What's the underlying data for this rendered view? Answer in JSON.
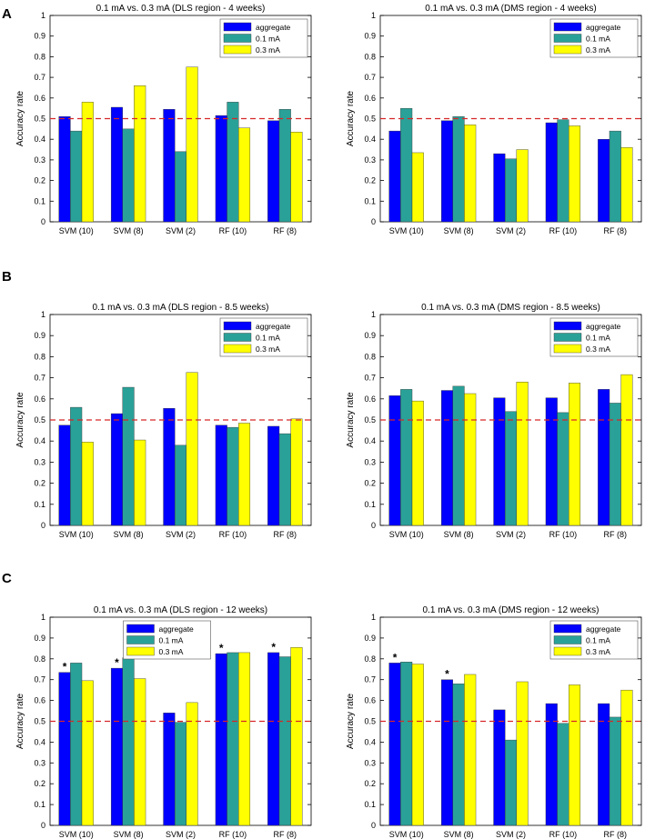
{
  "panels": [
    {
      "letter": "A"
    },
    {
      "letter": "B"
    },
    {
      "letter": "C"
    }
  ],
  "colors": {
    "aggregate": "#0000ff",
    "0.1 mA": "#2aa198",
    "0.3 mA": "#ffff00",
    "reference_line": "#d62728"
  },
  "chart_data": [
    {
      "type": "bar",
      "title": "0.1 mA vs. 0.3 mA (DLS region - 4 weeks)",
      "xlabel": "",
      "ylabel": "Accuracy rate",
      "ylim": [
        0,
        1
      ],
      "yticks": [
        "0",
        "0.1",
        "0.2",
        "0.3",
        "0.4",
        "0.5",
        "0.6",
        "0.7",
        "0.8",
        "0.9",
        "1"
      ],
      "categories": [
        "SVM (10)",
        "SVM (8)",
        "SVM (2)",
        "RF (10)",
        "RF (8)"
      ],
      "series": [
        {
          "name": "aggregate",
          "values": [
            0.51,
            0.555,
            0.545,
            0.515,
            0.49
          ]
        },
        {
          "name": "0.1 mA",
          "values": [
            0.44,
            0.45,
            0.34,
            0.58,
            0.545
          ]
        },
        {
          "name": "0.3 mA",
          "values": [
            0.58,
            0.66,
            0.75,
            0.455,
            0.435
          ]
        }
      ],
      "reference_line": 0.5,
      "legend": "top-right",
      "stars": []
    },
    {
      "type": "bar",
      "title": "0.1 mA vs. 0.3 mA (DMS region - 4 weeks)",
      "xlabel": "",
      "ylabel": "Accuracy rate",
      "ylim": [
        0,
        1
      ],
      "yticks": [
        "0",
        "0.1",
        "0.2",
        "0.3",
        "0.4",
        "0.5",
        "0.6",
        "0.7",
        "0.8",
        "0.9",
        "1"
      ],
      "categories": [
        "SVM (10)",
        "SVM (8)",
        "SVM (2)",
        "RF (10)",
        "RF (8)"
      ],
      "series": [
        {
          "name": "aggregate",
          "values": [
            0.44,
            0.49,
            0.33,
            0.48,
            0.4
          ]
        },
        {
          "name": "0.1 mA",
          "values": [
            0.55,
            0.51,
            0.305,
            0.495,
            0.44
          ]
        },
        {
          "name": "0.3 mA",
          "values": [
            0.335,
            0.47,
            0.35,
            0.465,
            0.36
          ]
        }
      ],
      "reference_line": 0.5,
      "legend": "top-right",
      "stars": []
    },
    {
      "type": "bar",
      "title": "0.1 mA vs. 0.3 mA (DLS region - 8.5 weeks)",
      "xlabel": "",
      "ylabel": "Accuracy rate",
      "ylim": [
        0,
        1
      ],
      "yticks": [
        "0",
        "0.1",
        "0.2",
        "0.3",
        "0.4",
        "0.5",
        "0.6",
        "0.7",
        "0.8",
        "0.9",
        "1"
      ],
      "categories": [
        "SVM (10)",
        "SVM (8)",
        "SVM (2)",
        "RF (10)",
        "RF (8)"
      ],
      "series": [
        {
          "name": "aggregate",
          "values": [
            0.475,
            0.53,
            0.555,
            0.475,
            0.47
          ]
        },
        {
          "name": "0.1 mA",
          "values": [
            0.56,
            0.655,
            0.38,
            0.465,
            0.435
          ]
        },
        {
          "name": "0.3 mA",
          "values": [
            0.395,
            0.405,
            0.725,
            0.485,
            0.505
          ]
        }
      ],
      "reference_line": 0.5,
      "legend": "top-right",
      "stars": []
    },
    {
      "type": "bar",
      "title": "0.1 mA vs. 0.3 mA (DMS region - 8.5 weeks)",
      "xlabel": "",
      "ylabel": "Accuracy rate",
      "ylim": [
        0,
        1
      ],
      "yticks": [
        "0",
        "0.1",
        "0.2",
        "0.3",
        "0.4",
        "0.5",
        "0.6",
        "0.7",
        "0.8",
        "0.9",
        "1"
      ],
      "categories": [
        "SVM (10)",
        "SVM (8)",
        "SVM (2)",
        "RF (10)",
        "RF (8)"
      ],
      "series": [
        {
          "name": "aggregate",
          "values": [
            0.615,
            0.64,
            0.605,
            0.605,
            0.645
          ]
        },
        {
          "name": "0.1 mA",
          "values": [
            0.645,
            0.66,
            0.54,
            0.535,
            0.58
          ]
        },
        {
          "name": "0.3 mA",
          "values": [
            0.59,
            0.625,
            0.68,
            0.675,
            0.715
          ]
        }
      ],
      "reference_line": 0.5,
      "legend": "top-right",
      "stars": []
    },
    {
      "type": "bar",
      "title": "0.1 mA vs. 0.3 mA (DLS region - 12 weeks)",
      "xlabel": "",
      "ylabel": "Accuracy rate",
      "ylim": [
        0,
        1
      ],
      "yticks": [
        "0",
        "0.1",
        "0.2",
        "0.3",
        "0.4",
        "0.5",
        "0.6",
        "0.7",
        "0.8",
        "0.9",
        "1"
      ],
      "categories": [
        "SVM (10)",
        "SVM (8)",
        "SVM (2)",
        "RF (10)",
        "RF (8)"
      ],
      "series": [
        {
          "name": "aggregate",
          "values": [
            0.735,
            0.755,
            0.54,
            0.825,
            0.83
          ]
        },
        {
          "name": "0.1 mA",
          "values": [
            0.78,
            0.805,
            0.495,
            0.83,
            0.81
          ]
        },
        {
          "name": "0.3 mA",
          "values": [
            0.695,
            0.705,
            0.59,
            0.83,
            0.855
          ]
        }
      ],
      "reference_line": 0.5,
      "legend": "top-center",
      "stars": [
        0,
        1,
        3,
        4
      ]
    },
    {
      "type": "bar",
      "title": "0.1 mA vs. 0.3 mA (DMS region - 12 weeks)",
      "xlabel": "",
      "ylabel": "Accuracy rate",
      "ylim": [
        0,
        1
      ],
      "yticks": [
        "0",
        "0.1",
        "0.2",
        "0.3",
        "0.4",
        "0.5",
        "0.6",
        "0.7",
        "0.8",
        "0.9",
        "1"
      ],
      "categories": [
        "SVM (10)",
        "SVM (8)",
        "SVM (2)",
        "RF (10)",
        "RF (8)"
      ],
      "series": [
        {
          "name": "aggregate",
          "values": [
            0.78,
            0.7,
            0.555,
            0.585,
            0.585
          ]
        },
        {
          "name": "0.1 mA",
          "values": [
            0.785,
            0.68,
            0.41,
            0.49,
            0.52
          ]
        },
        {
          "name": "0.3 mA",
          "values": [
            0.775,
            0.725,
            0.69,
            0.675,
            0.65
          ]
        }
      ],
      "reference_line": 0.5,
      "legend": "top-right",
      "stars": [
        0,
        1
      ]
    }
  ]
}
